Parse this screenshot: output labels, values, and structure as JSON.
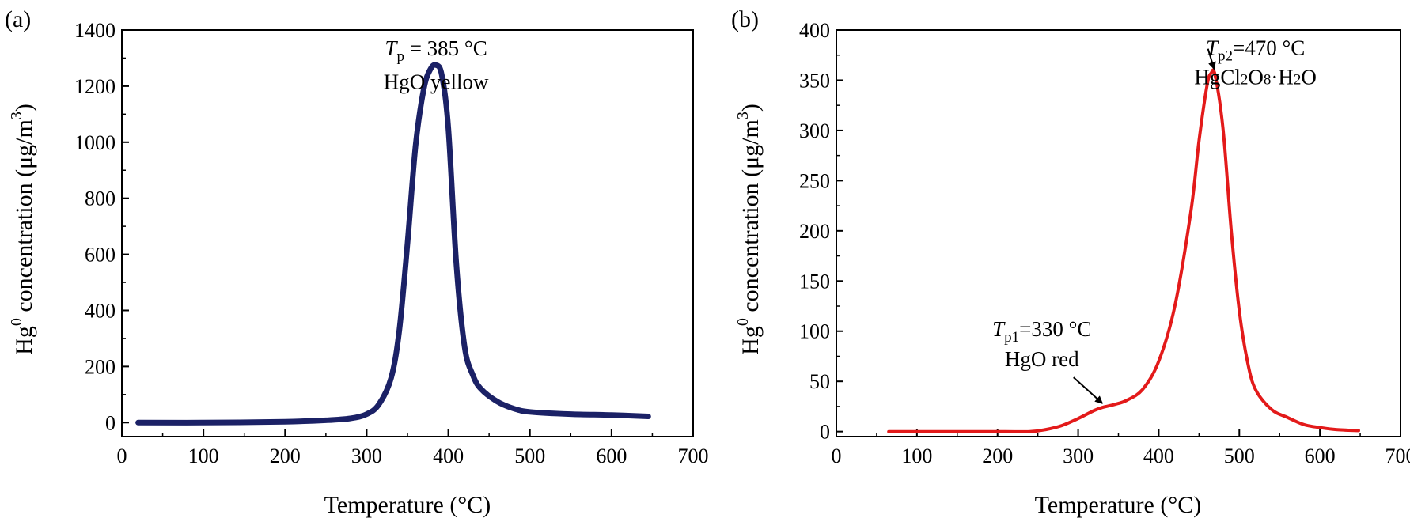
{
  "figure": {
    "colors": {
      "axis": "#000000"
    }
  },
  "chart_data": [
    {
      "panel_label": "(a)",
      "type": "line",
      "xlabel": "Temperature (°C)",
      "ylabel_prefix": "Hg",
      "ylabel_sup": "0",
      "ylabel_mid": " concentration (μg/m",
      "ylabel_sup2": "3",
      "ylabel_suffix": ")",
      "xlim": [
        0,
        700
      ],
      "ylim": [
        -50,
        1400
      ],
      "xticks": [
        0,
        100,
        200,
        300,
        400,
        500,
        600,
        700
      ],
      "yticks": [
        0,
        200,
        400,
        600,
        800,
        1000,
        1200,
        1400
      ],
      "series": [
        {
          "name": "HgO yellow",
          "color": "#1b2166",
          "stroke_width": 7,
          "x": [
            20,
            100,
            200,
            250,
            280,
            300,
            315,
            330,
            340,
            350,
            360,
            370,
            378,
            385,
            392,
            400,
            410,
            420,
            430,
            440,
            460,
            480,
            500,
            550,
            600,
            645
          ],
          "y": [
            0,
            0,
            3,
            8,
            15,
            30,
            65,
            160,
            330,
            640,
            990,
            1190,
            1260,
            1275,
            1240,
            1050,
            560,
            270,
            170,
            120,
            75,
            50,
            38,
            30,
            27,
            22
          ]
        }
      ],
      "annotations": [
        {
          "t_italic": "T",
          "t_sub": "p",
          "text": " = 385 °C",
          "x": 385,
          "y": 1310
        },
        {
          "text": "HgO yellow",
          "x": 385,
          "y": 1190
        }
      ]
    },
    {
      "panel_label": "(b)",
      "type": "line",
      "xlabel": "Temperature (°C)",
      "ylabel_prefix": "Hg",
      "ylabel_sup": "0",
      "ylabel_mid": " concentration (μg/m",
      "ylabel_sup2": "3",
      "ylabel_suffix": ")",
      "xlim": [
        0,
        700
      ],
      "ylim": [
        -5,
        400
      ],
      "xticks": [
        0,
        100,
        200,
        300,
        400,
        500,
        600,
        700
      ],
      "yticks": [
        0,
        50,
        100,
        150,
        200,
        250,
        300,
        350,
        400
      ],
      "series": [
        {
          "name": "HgO red / HgCl2O8·H2O",
          "color": "#e31a1a",
          "stroke_width": 4,
          "x": [
            65,
            100,
            200,
            240,
            260,
            280,
            300,
            320,
            330,
            345,
            360,
            380,
            400,
            420,
            440,
            450,
            460,
            465,
            470,
            480,
            490,
            500,
            510,
            520,
            540,
            560,
            580,
            600,
            620,
            648
          ],
          "y": [
            0,
            0,
            0,
            0,
            2,
            6,
            13,
            21,
            24,
            27,
            31,
            42,
            70,
            125,
            220,
            290,
            345,
            357,
            355,
            300,
            200,
            120,
            70,
            42,
            22,
            14,
            7,
            4,
            2,
            1
          ]
        }
      ],
      "annotations": [
        {
          "t_italic": "T",
          "t_sub": "p2",
          "text": "=470 °C",
          "x": 520,
          "y": 375,
          "arrow_to": [
            470,
            358
          ]
        },
        {
          "text": "HgCl2O8·H2O",
          "chem": [
            "HgCl",
            "2",
            "O",
            "8",
            "·H",
            "2",
            "O"
          ],
          "x": 520,
          "y": 346,
          "color": "#e31a1a"
        },
        {
          "t_italic": "T",
          "t_sub": "p1",
          "text": "=330 °C",
          "x": 255,
          "y": 95
        },
        {
          "text": "HgO red",
          "x": 255,
          "y": 65,
          "color": "#e31a1a",
          "arrow_to": [
            333,
            26
          ]
        }
      ]
    }
  ]
}
